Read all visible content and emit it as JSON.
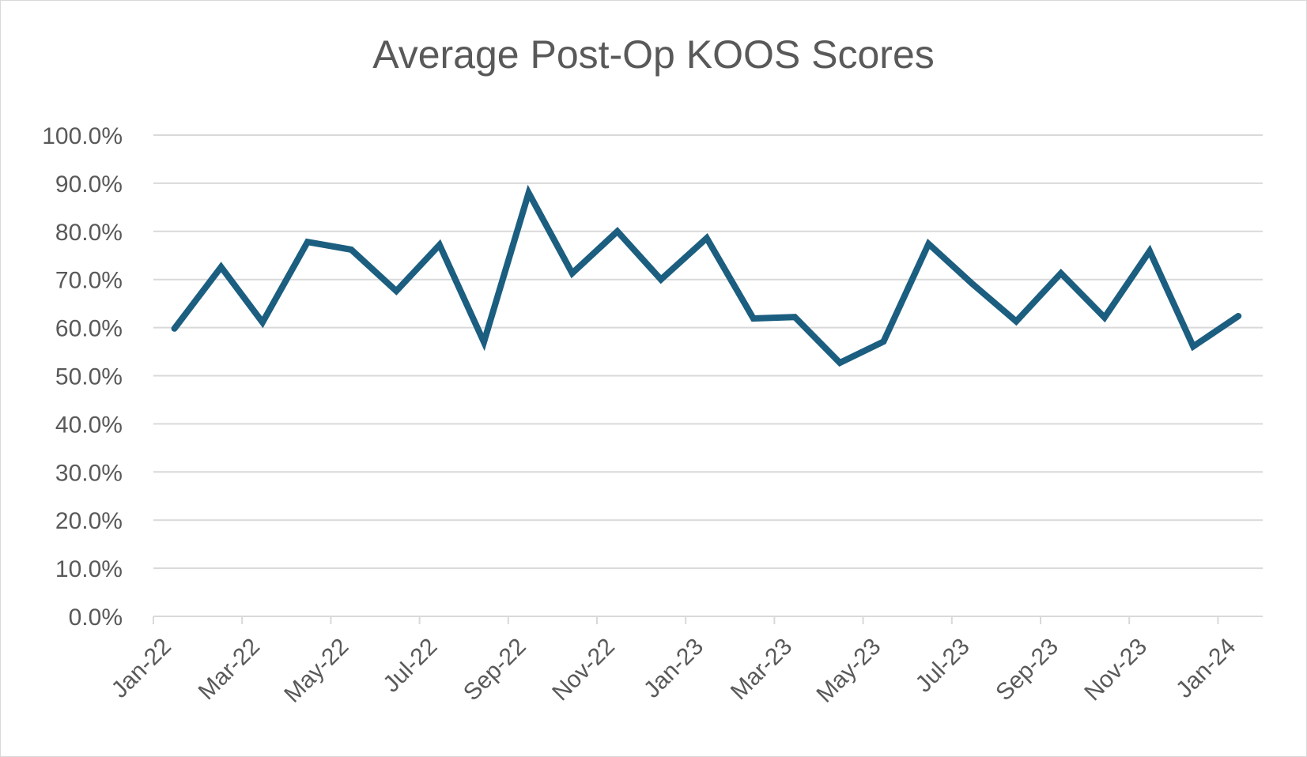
{
  "chart_data": {
    "type": "line",
    "title": "Average Post-Op KOOS Scores",
    "xlabel": "",
    "ylabel": "",
    "ylim": [
      0,
      100
    ],
    "y_tick_labels": [
      "0.0%",
      "10.0%",
      "20.0%",
      "30.0%",
      "40.0%",
      "50.0%",
      "60.0%",
      "70.0%",
      "80.0%",
      "90.0%",
      "100.0%"
    ],
    "x_tick_labels": [
      "Jan-22",
      "Mar-22",
      "May-22",
      "Jul-22",
      "Sep-22",
      "Nov-22",
      "Jan-23",
      "Mar-23",
      "May-23",
      "Jul-23",
      "Sep-23",
      "Nov-23",
      "Jan-24"
    ],
    "grid": true,
    "legend": "none",
    "line_color": "#1b5e80",
    "series": [
      {
        "x": [
          "2022-01-15",
          "2022-02-15",
          "2022-03-15",
          "2022-04-15",
          "2022-05-15",
          "2022-06-15",
          "2022-07-15",
          "2022-08-15",
          "2022-09-15",
          "2022-10-15",
          "2022-11-15",
          "2022-12-15",
          "2023-01-15",
          "2023-02-15",
          "2023-03-15",
          "2023-04-15",
          "2023-05-15",
          "2023-06-15",
          "2023-07-15",
          "2023-08-15",
          "2023-09-15",
          "2023-10-15",
          "2023-11-15",
          "2023-12-15",
          "2024-01-15"
        ],
        "values": [
          59.8,
          72.6,
          61.1,
          77.8,
          76.2,
          67.6,
          77.2,
          57.0,
          88.0,
          71.3,
          80.0,
          70.0,
          78.6,
          61.9,
          62.2,
          52.7,
          57.1,
          77.4,
          69.2,
          61.3,
          71.3,
          62.1,
          75.9,
          56.1,
          62.4
        ]
      }
    ]
  }
}
